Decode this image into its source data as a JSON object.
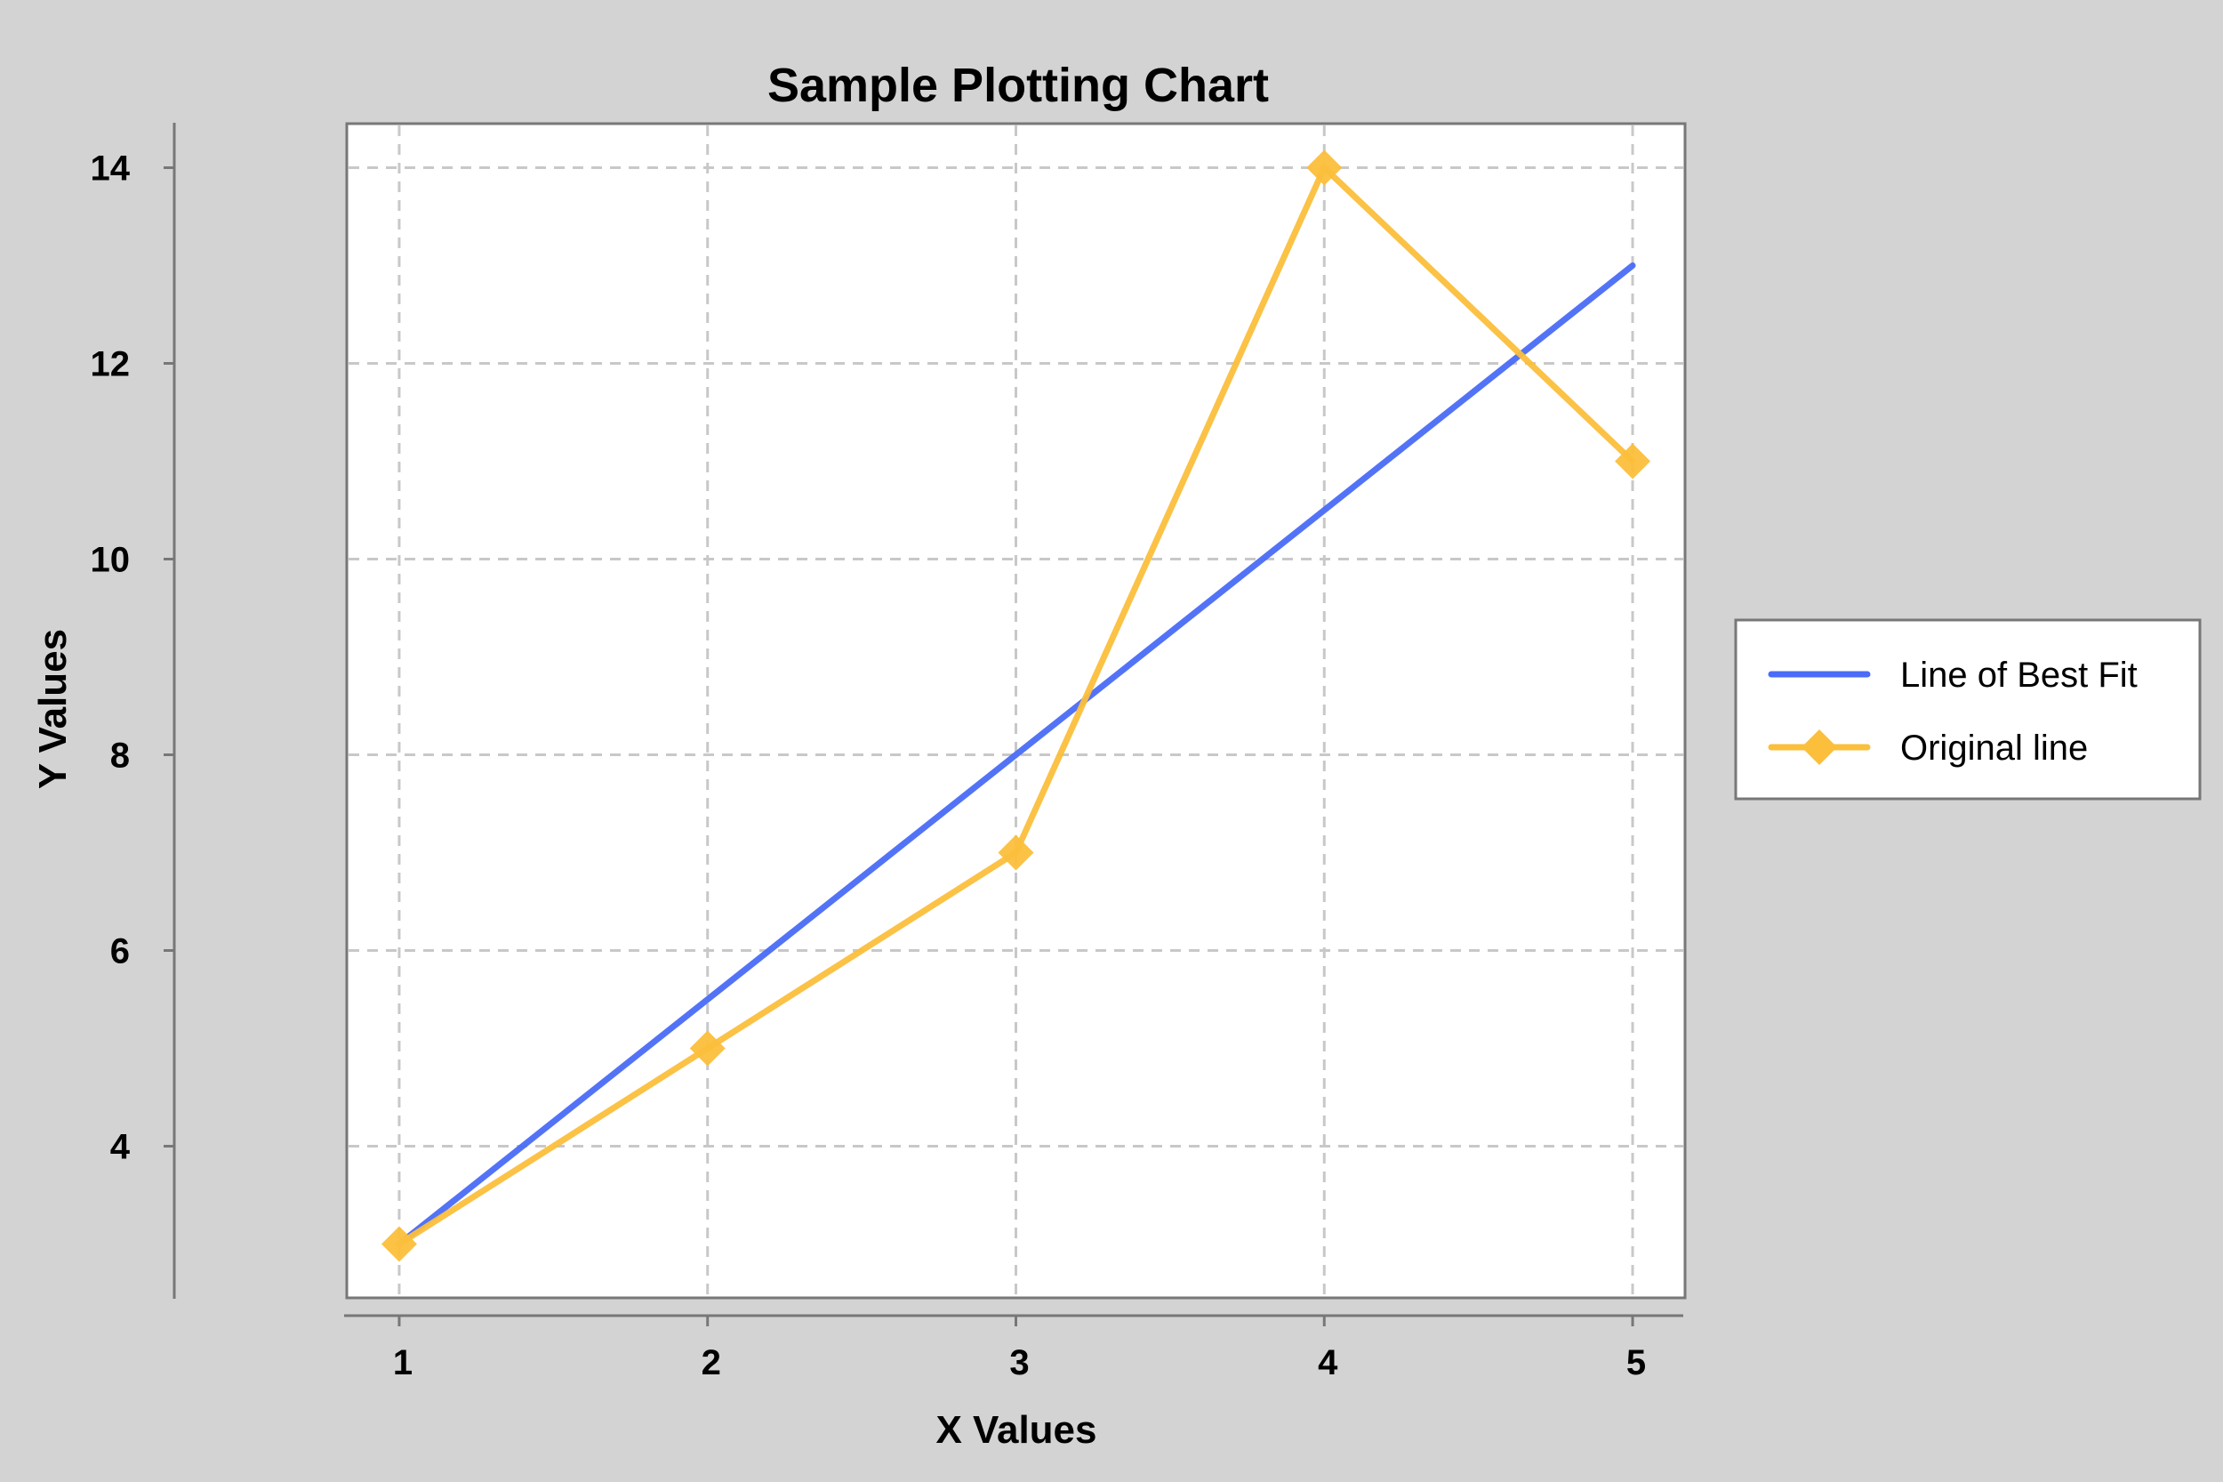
{
  "chart_data": {
    "type": "line",
    "title": "Sample Plotting Chart",
    "xlabel": "X Values",
    "ylabel": "Y Values",
    "x": [
      1,
      2,
      3,
      4,
      5
    ],
    "xticks": [
      1,
      2,
      3,
      4,
      5
    ],
    "yticks": [
      4,
      6,
      8,
      10,
      12,
      14
    ],
    "xlim": [
      0.83,
      5.17
    ],
    "ylim": [
      2.45,
      14.45
    ],
    "grid": true,
    "legend_position": "right",
    "series": [
      {
        "name": "Line of Best Fit",
        "values": [
          3.0,
          5.5,
          8.0,
          10.5,
          13.0
        ],
        "color": "#4a6cf7",
        "marker": "none"
      },
      {
        "name": "Original line",
        "values": [
          3,
          5,
          7,
          14,
          11
        ],
        "color": "#fbbf3c",
        "marker": "diamond"
      }
    ],
    "background_color": "#d3d3d3",
    "plot_background_color": "#ffffff"
  }
}
